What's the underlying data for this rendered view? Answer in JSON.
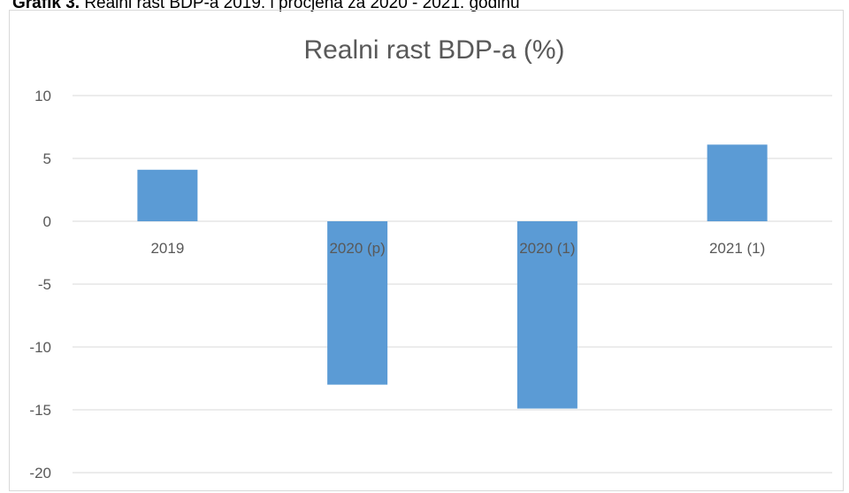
{
  "caption": {
    "prefix": "Grafik 3.",
    "text": " Realni rast BDP-a 2019. i procjena za 2020 - 2021. godinu"
  },
  "colors": {
    "bar": "#5b9bd5",
    "grid": "#d9d9d9",
    "text": "#595959",
    "border": "#d9d9d9"
  },
  "chart_data": {
    "type": "bar",
    "title": "Realni rast BDP-a (%)",
    "categories": [
      "2019",
      "2020 (p)",
      "2020 (1)",
      "2021 (1)"
    ],
    "values": [
      4.1,
      -13.0,
      -14.9,
      6.1
    ],
    "ylim": [
      -20,
      10
    ],
    "yticks": [
      10,
      5,
      0,
      -5,
      -10,
      -15,
      -20
    ],
    "ytick_labels": [
      "10",
      "5",
      "0",
      "-5",
      "-10",
      "-15",
      "-20"
    ],
    "grid": true,
    "legend": "none",
    "xlabel": "",
    "ylabel": ""
  }
}
